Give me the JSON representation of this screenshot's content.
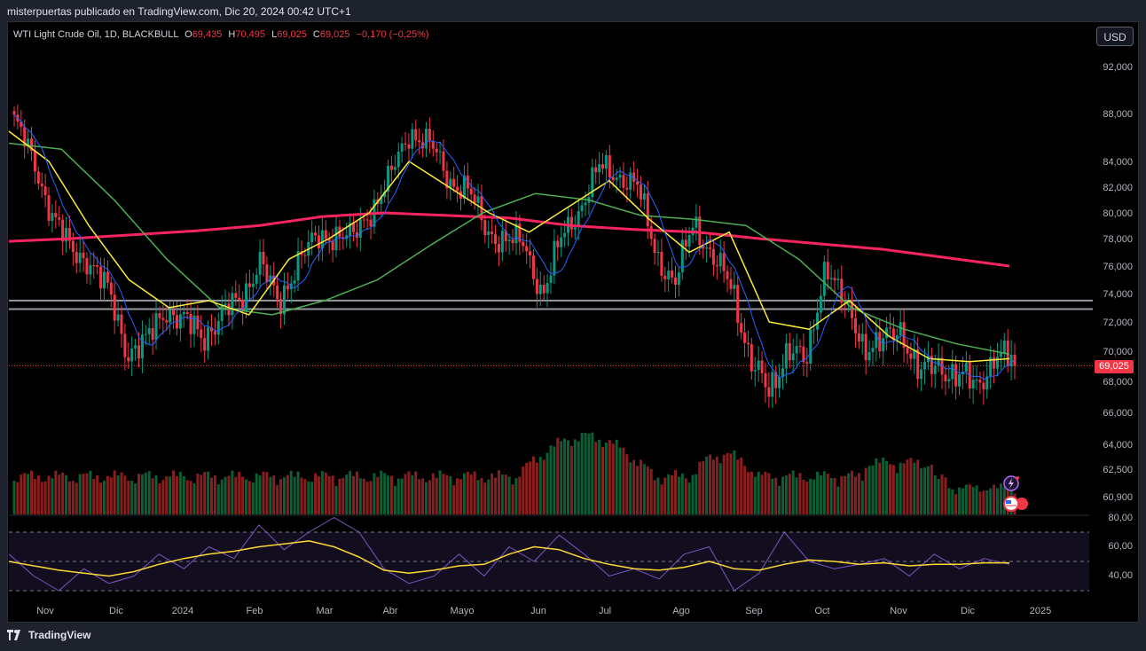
{
  "header": {
    "caption": "misterpuertas publicado en TradingView.com, Dic 20, 2024 00:42 UTC+1"
  },
  "legend": {
    "symbol": "WTI Light Crude Oil, 1D, BLACKBULL",
    "open_label": "O",
    "open": "69,435",
    "high_label": "H",
    "high": "70,495",
    "low_label": "L",
    "low": "69,025",
    "close_label": "C",
    "close": "69,025",
    "change": "−0,170 (−0,25%)"
  },
  "currency_button": "USD",
  "last_price_badge": "69,025",
  "footer": {
    "brand": "TradingView"
  },
  "colors": {
    "up": "#089981",
    "down": "#f23645",
    "ma200": "#f7245f",
    "ma50": "#4caf50",
    "ma20": "#ffeb3b",
    "ma9": "#2962ff",
    "rsi": "#7e57c2",
    "rsi_ma": "#fdd835"
  },
  "chart_data": [
    {
      "type": "candlestick",
      "title": "WTI Light Crude Oil, 1D, BLACKBULL",
      "y_axis_ticks": [
        "92,000",
        "88,000",
        "84,000",
        "82,000",
        "80,000",
        "78,000",
        "76,000",
        "74,000",
        "72,000",
        "70,000",
        "68,000",
        "66,000",
        "64,000",
        "62,500",
        "60,900"
      ],
      "y_axis_scale": "log",
      "x_axis_ticks": [
        "Nov",
        "Dic",
        "2024",
        "Feb",
        "Mar",
        "Abr",
        "Mayo",
        "Jun",
        "Jul",
        "Ago",
        "Sep",
        "Oct",
        "Nov",
        "Dic",
        "2025"
      ],
      "last_price": 69.025,
      "horizontal_levels": [
        73.5,
        72.9
      ],
      "close_path": [
        {
          "x": "Nov",
          "y": 87.5
        },
        {
          "x": "Nov",
          "y": 84.0
        },
        {
          "x": "Nov",
          "y": 80.0
        },
        {
          "x": "Nov",
          "y": 77.0
        },
        {
          "x": "Dic",
          "y": 76.5
        },
        {
          "x": "Dic",
          "y": 74.0
        },
        {
          "x": "Dic",
          "y": 70.0
        },
        {
          "x": "Dic",
          "y": 70.5
        },
        {
          "x": "Dic",
          "y": 73.0
        },
        {
          "x": "2024",
          "y": 72.0
        },
        {
          "x": "2024",
          "y": 71.0
        },
        {
          "x": "2024",
          "y": 72.5
        },
        {
          "x": "2024",
          "y": 73.5
        },
        {
          "x": "Feb",
          "y": 76.5
        },
        {
          "x": "Feb",
          "y": 73.0
        },
        {
          "x": "Feb",
          "y": 76.5
        },
        {
          "x": "Feb",
          "y": 77.8
        },
        {
          "x": "Mar",
          "y": 78.5
        },
        {
          "x": "Mar",
          "y": 78.0
        },
        {
          "x": "Mar",
          "y": 80.5
        },
        {
          "x": "Abr",
          "y": 83.0
        },
        {
          "x": "Abr",
          "y": 86.5
        },
        {
          "x": "Abr",
          "y": 85.5
        },
        {
          "x": "Abr",
          "y": 82.5
        },
        {
          "x": "Mayo",
          "y": 82.0
        },
        {
          "x": "Mayo",
          "y": 78.5
        },
        {
          "x": "Mayo",
          "y": 78.0
        },
        {
          "x": "Mayo",
          "y": 77.5
        },
        {
          "x": "Jun",
          "y": 74.0
        },
        {
          "x": "Jun",
          "y": 78.0
        },
        {
          "x": "Jun",
          "y": 80.5
        },
        {
          "x": "Jul",
          "y": 83.5
        },
        {
          "x": "Jul",
          "y": 83.0
        },
        {
          "x": "Jul",
          "y": 82.0
        },
        {
          "x": "Ago",
          "y": 77.0
        },
        {
          "x": "Ago",
          "y": 74.5
        },
        {
          "x": "Ago",
          "y": 79.5
        },
        {
          "x": "Ago",
          "y": 76.5
        },
        {
          "x": "Sep",
          "y": 74.5
        },
        {
          "x": "Sep",
          "y": 69.5
        },
        {
          "x": "Sep",
          "y": 67.0
        },
        {
          "x": "Sep",
          "y": 70.5
        },
        {
          "x": "Oct",
          "y": 69.0
        },
        {
          "x": "Oct",
          "y": 76.5
        },
        {
          "x": "Oct",
          "y": 73.0
        },
        {
          "x": "Oct",
          "y": 70.5
        },
        {
          "x": "Nov",
          "y": 70.5
        },
        {
          "x": "Nov",
          "y": 71.5
        },
        {
          "x": "Nov",
          "y": 68.5
        },
        {
          "x": "Nov",
          "y": 69.0
        },
        {
          "x": "Dic",
          "y": 68.5
        },
        {
          "x": "Dic",
          "y": 67.5
        },
        {
          "x": "Dic",
          "y": 70.0
        },
        {
          "x": "Dic",
          "y": 69.025
        }
      ],
      "moving_averages": [
        {
          "color": "#f7245f",
          "y": [
            77.8,
            78.0,
            78.3,
            78.6,
            79.0,
            79.7,
            80.0,
            79.8,
            79.6,
            79.0,
            78.7,
            78.5,
            78.0,
            77.6,
            77.2,
            76.6,
            76.0
          ]
        },
        {
          "color": "#4caf50",
          "y": [
            85.5,
            85.0,
            81.0,
            76.5,
            73.0,
            72.5,
            73.5,
            75.0,
            77.5,
            80.0,
            81.5,
            81.0,
            79.8,
            79.5,
            79.0,
            76.5,
            73.0,
            71.5,
            70.5,
            69.8
          ]
        },
        {
          "color": "#ffeb3b",
          "y": [
            86.5,
            84.0,
            79.0,
            75.0,
            73.0,
            73.5,
            72.5,
            76.5,
            78.0,
            80.0,
            84.0,
            82.0,
            80.0,
            78.5,
            80.5,
            82.5,
            79.5,
            77.0,
            78.5,
            72.0,
            71.5,
            73.5,
            71.0,
            69.5,
            69.3,
            69.5
          ]
        }
      ],
      "volume_axis_visible": false
    },
    {
      "type": "line",
      "title": "",
      "y_axis_ticks": [
        "80,00",
        "60,00",
        "40,00"
      ],
      "reference_levels": [
        70,
        50,
        30
      ],
      "series": [
        {
          "color": "#7e57c2",
          "values": [
            55,
            40,
            30,
            45,
            35,
            40,
            55,
            45,
            60,
            52,
            75,
            58,
            70,
            80,
            70,
            45,
            35,
            40,
            55,
            40,
            60,
            50,
            68,
            55,
            40,
            45,
            38,
            55,
            60,
            30,
            42,
            70,
            50,
            45,
            48,
            52,
            40,
            55,
            45,
            52,
            48
          ]
        },
        {
          "color": "#fdd835",
          "values": [
            50,
            47,
            44,
            42,
            40,
            43,
            48,
            52,
            55,
            57,
            60,
            62,
            64,
            60,
            53,
            44,
            42,
            44,
            47,
            48,
            55,
            60,
            58,
            52,
            48,
            45,
            44,
            46,
            50,
            45,
            44,
            48,
            51,
            50,
            48,
            49,
            47,
            48,
            48,
            49,
            49
          ]
        }
      ]
    }
  ]
}
